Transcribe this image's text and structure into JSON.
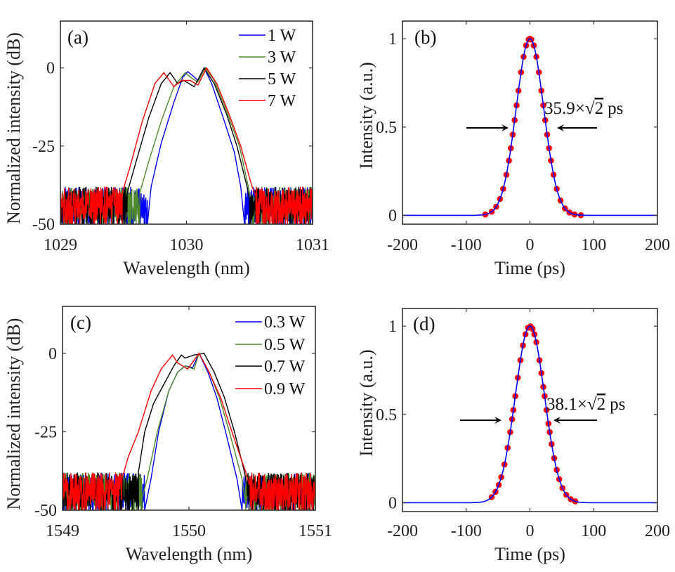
{
  "chart_data": [
    {
      "panel": "(a)",
      "type": "line",
      "xlabel": "Wavelength (nm)",
      "ylabel": "Normalized intensity (dB)",
      "xlim": [
        1029,
        1031
      ],
      "ylim": [
        -50,
        15
      ],
      "xticks": [
        "1029",
        "1030",
        "1031"
      ],
      "xtick_values": [
        1029,
        1030,
        1031
      ],
      "yticks": [
        "-50",
        "-25",
        "0"
      ],
      "ytick_values": [
        -50,
        -25,
        0
      ],
      "legend_position": "top-right",
      "noise_floor_db": [
        -50,
        -38
      ],
      "series": [
        {
          "name": "1 W",
          "color": "#0000ff",
          "points": [
            [
              1029.69,
              -50
            ],
            [
              1029.72,
              -38
            ],
            [
              1029.8,
              -24
            ],
            [
              1029.9,
              -11
            ],
            [
              1029.97,
              -3
            ],
            [
              1030.01,
              -1.2
            ],
            [
              1030.05,
              -2.5
            ],
            [
              1030.09,
              -4
            ],
            [
              1030.14,
              0
            ],
            [
              1030.2,
              -5
            ],
            [
              1030.3,
              -17
            ],
            [
              1030.38,
              -27
            ],
            [
              1030.43,
              -38
            ],
            [
              1030.46,
              -50
            ]
          ]
        },
        {
          "name": "3 W",
          "color": "#4f8a2b",
          "points": [
            [
              1029.63,
              -40
            ],
            [
              1029.7,
              -30
            ],
            [
              1029.8,
              -17
            ],
            [
              1029.9,
              -6
            ],
            [
              1029.99,
              -1.5
            ],
            [
              1030.05,
              -3.5
            ],
            [
              1030.09,
              -4.5
            ],
            [
              1030.15,
              0
            ],
            [
              1030.22,
              -4
            ],
            [
              1030.32,
              -14
            ],
            [
              1030.42,
              -25
            ],
            [
              1030.49,
              -38
            ],
            [
              1030.52,
              -44
            ]
          ]
        },
        {
          "name": "5 W",
          "color": "#000000",
          "points": [
            [
              1029.53,
              -40
            ],
            [
              1029.6,
              -30
            ],
            [
              1029.7,
              -16
            ],
            [
              1029.8,
              -5
            ],
            [
              1029.87,
              -1.5
            ],
            [
              1029.93,
              -5
            ],
            [
              1029.98,
              -4
            ],
            [
              1030.06,
              -6
            ],
            [
              1030.14,
              0
            ],
            [
              1030.22,
              -5
            ],
            [
              1030.32,
              -15
            ],
            [
              1030.4,
              -25
            ],
            [
              1030.48,
              -38
            ],
            [
              1030.5,
              -42
            ]
          ]
        },
        {
          "name": "7 W",
          "color": "#ff0000",
          "points": [
            [
              1029.49,
              -40
            ],
            [
              1029.55,
              -32
            ],
            [
              1029.65,
              -17
            ],
            [
              1029.75,
              -5
            ],
            [
              1029.82,
              -1.5
            ],
            [
              1029.9,
              -6
            ],
            [
              1029.96,
              -4
            ],
            [
              1030.03,
              -4
            ],
            [
              1030.09,
              -5.5
            ],
            [
              1030.16,
              0
            ],
            [
              1030.24,
              -5
            ],
            [
              1030.34,
              -15
            ],
            [
              1030.43,
              -25
            ],
            [
              1030.52,
              -38
            ],
            [
              1030.55,
              -41
            ]
          ]
        }
      ]
    },
    {
      "panel": "(b)",
      "type": "scatter+line",
      "xlabel": "Time (ps)",
      "ylabel": "Intensity (a.u.)",
      "xlim": [
        -200,
        200
      ],
      "ylim": [
        -0.05,
        1.1
      ],
      "xticks": [
        "-200",
        "-100",
        "0",
        "100",
        "200"
      ],
      "xtick_values": [
        -200,
        -100,
        0,
        100,
        200
      ],
      "yticks": [
        "0",
        "0.5",
        "1"
      ],
      "ytick_values": [
        0,
        0.5,
        1
      ],
      "annotation": {
        "value": "35.9",
        "times": "×",
        "sqrt": "√",
        "radicand": "2",
        "unit": "ps"
      },
      "fit": {
        "shape": "gaussian",
        "fwhm_ps": 50.8,
        "color": "#0000ff"
      },
      "points_color": "#ff0000",
      "points": [
        [
          -70,
          0.005
        ],
        [
          -60,
          0.021
        ],
        [
          -53,
          0.049
        ],
        [
          -47,
          0.093
        ],
        [
          -42,
          0.15
        ],
        [
          -37,
          0.23
        ],
        [
          -33,
          0.31
        ],
        [
          -30,
          0.38
        ],
        [
          -27,
          0.457
        ],
        [
          -24,
          0.539
        ],
        [
          -21,
          0.623
        ],
        [
          -18,
          0.706
        ],
        [
          -14,
          0.81
        ],
        [
          -10,
          0.898
        ],
        [
          -6,
          0.962
        ],
        [
          -2,
          0.996
        ],
        [
          0,
          1.0
        ],
        [
          2,
          0.996
        ],
        [
          6,
          0.962
        ],
        [
          10,
          0.898
        ],
        [
          14,
          0.81
        ],
        [
          18,
          0.706
        ],
        [
          21,
          0.623
        ],
        [
          24,
          0.539
        ],
        [
          27,
          0.457
        ],
        [
          30,
          0.38
        ],
        [
          33,
          0.31
        ],
        [
          37,
          0.23
        ],
        [
          42,
          0.15
        ],
        [
          48,
          0.084
        ],
        [
          55,
          0.039
        ],
        [
          62,
          0.016
        ],
        [
          70,
          0.005
        ],
        [
          80,
          0.001
        ]
      ]
    },
    {
      "panel": "(c)",
      "type": "line",
      "xlabel": "Wavelength (nm)",
      "ylabel": "Normalized intensity (dB)",
      "xlim": [
        1549,
        1551
      ],
      "ylim": [
        -50,
        15
      ],
      "xticks": [
        "1549",
        "1550",
        "1551"
      ],
      "xtick_values": [
        1549,
        1550,
        1551
      ],
      "yticks": [
        "-50",
        "-25",
        "0"
      ],
      "ytick_values": [
        -50,
        -25,
        0
      ],
      "legend_position": "top-right",
      "noise_floor_db": [
        -50,
        -38
      ],
      "series": [
        {
          "name": "0.3 W",
          "color": "#0000ff",
          "points": [
            [
              1549.65,
              -50
            ],
            [
              1549.7,
              -40
            ],
            [
              1549.76,
              -25
            ],
            [
              1549.84,
              -12
            ],
            [
              1549.91,
              -6
            ],
            [
              1549.97,
              -4
            ],
            [
              1550.03,
              -4.5
            ],
            [
              1550.08,
              0
            ],
            [
              1550.15,
              -6
            ],
            [
              1550.22,
              -14
            ],
            [
              1550.29,
              -25
            ],
            [
              1550.38,
              -40
            ],
            [
              1550.42,
              -50
            ]
          ]
        },
        {
          "name": "0.5 W",
          "color": "#4f8a2b",
          "points": [
            [
              1549.63,
              -46
            ],
            [
              1549.67,
              -40
            ],
            [
              1549.75,
              -25
            ],
            [
              1549.84,
              -12
            ],
            [
              1549.91,
              -6
            ],
            [
              1549.97,
              -4
            ],
            [
              1550.04,
              -5
            ],
            [
              1550.08,
              0
            ],
            [
              1550.16,
              -6
            ],
            [
              1550.24,
              -14
            ],
            [
              1550.32,
              -25
            ],
            [
              1550.42,
              -40
            ],
            [
              1550.44,
              -46
            ]
          ]
        },
        {
          "name": "0.7 W",
          "color": "#000000",
          "points": [
            [
              1549.6,
              -38
            ],
            [
              1549.65,
              -25
            ],
            [
              1549.72,
              -16
            ],
            [
              1549.8,
              -10
            ],
            [
              1549.88,
              -4
            ],
            [
              1549.94,
              -0.5
            ],
            [
              1549.97,
              -1.5
            ],
            [
              1550.04,
              -0.5
            ],
            [
              1550.12,
              0
            ],
            [
              1550.2,
              -6
            ],
            [
              1550.28,
              -14
            ],
            [
              1550.36,
              -25
            ],
            [
              1550.44,
              -38
            ],
            [
              1550.46,
              -42
            ]
          ]
        },
        {
          "name": "0.9 W",
          "color": "#ff0000",
          "points": [
            [
              1549.47,
              -40
            ],
            [
              1549.52,
              -33
            ],
            [
              1549.6,
              -25
            ],
            [
              1549.7,
              -12
            ],
            [
              1549.78,
              -5
            ],
            [
              1549.87,
              -0.5
            ],
            [
              1549.91,
              -3
            ],
            [
              1549.99,
              -5
            ],
            [
              1550.08,
              0
            ],
            [
              1550.16,
              -6
            ],
            [
              1550.25,
              -14
            ],
            [
              1550.34,
              -25
            ],
            [
              1550.45,
              -38
            ],
            [
              1550.48,
              -42
            ]
          ]
        }
      ]
    },
    {
      "panel": "(d)",
      "type": "scatter+line",
      "xlabel": "Time (ps)",
      "ylabel": "Intensity (a.u.)",
      "xlim": [
        -200,
        200
      ],
      "ylim": [
        -0.05,
        1.1
      ],
      "xticks": [
        "-200",
        "-100",
        "0",
        "100",
        "200"
      ],
      "xtick_values": [
        -200,
        -100,
        0,
        100,
        200
      ],
      "yticks": [
        "0",
        "0.5",
        "1"
      ],
      "ytick_values": [
        0,
        0.5,
        1
      ],
      "annotation": {
        "value": "38.1",
        "times": "×",
        "sqrt": "√",
        "radicand": "2",
        "unit": "ps"
      },
      "fit": {
        "shape": "gaussian",
        "fwhm_ps": 53.9,
        "color": "#0000ff"
      },
      "points_color": "#ff0000",
      "points": [
        [
          -60,
          0.032
        ],
        [
          -54,
          0.062
        ],
        [
          -49,
          0.101
        ],
        [
          -45,
          0.145
        ],
        [
          -40,
          0.217
        ],
        [
          -35,
          0.311
        ],
        [
          -31,
          0.4
        ],
        [
          -28,
          0.473
        ],
        [
          -26,
          0.525
        ],
        [
          -23,
          0.604
        ],
        [
          -19,
          0.708
        ],
        [
          -15,
          0.807
        ],
        [
          -11,
          0.891
        ],
        [
          -7,
          0.954
        ],
        [
          -3,
          0.991
        ],
        [
          1,
          0.999
        ],
        [
          4,
          0.985
        ],
        [
          7,
          0.954
        ],
        [
          10,
          0.909
        ],
        [
          15,
          0.807
        ],
        [
          18,
          0.734
        ],
        [
          21,
          0.656
        ],
        [
          23,
          0.604
        ],
        [
          26,
          0.525
        ],
        [
          29,
          0.448
        ],
        [
          31,
          0.4
        ],
        [
          34,
          0.332
        ],
        [
          38,
          0.252
        ],
        [
          42,
          0.186
        ],
        [
          46,
          0.133
        ],
        [
          51,
          0.083
        ],
        [
          57,
          0.045
        ],
        [
          64,
          0.02
        ],
        [
          71,
          0.008
        ]
      ]
    }
  ]
}
